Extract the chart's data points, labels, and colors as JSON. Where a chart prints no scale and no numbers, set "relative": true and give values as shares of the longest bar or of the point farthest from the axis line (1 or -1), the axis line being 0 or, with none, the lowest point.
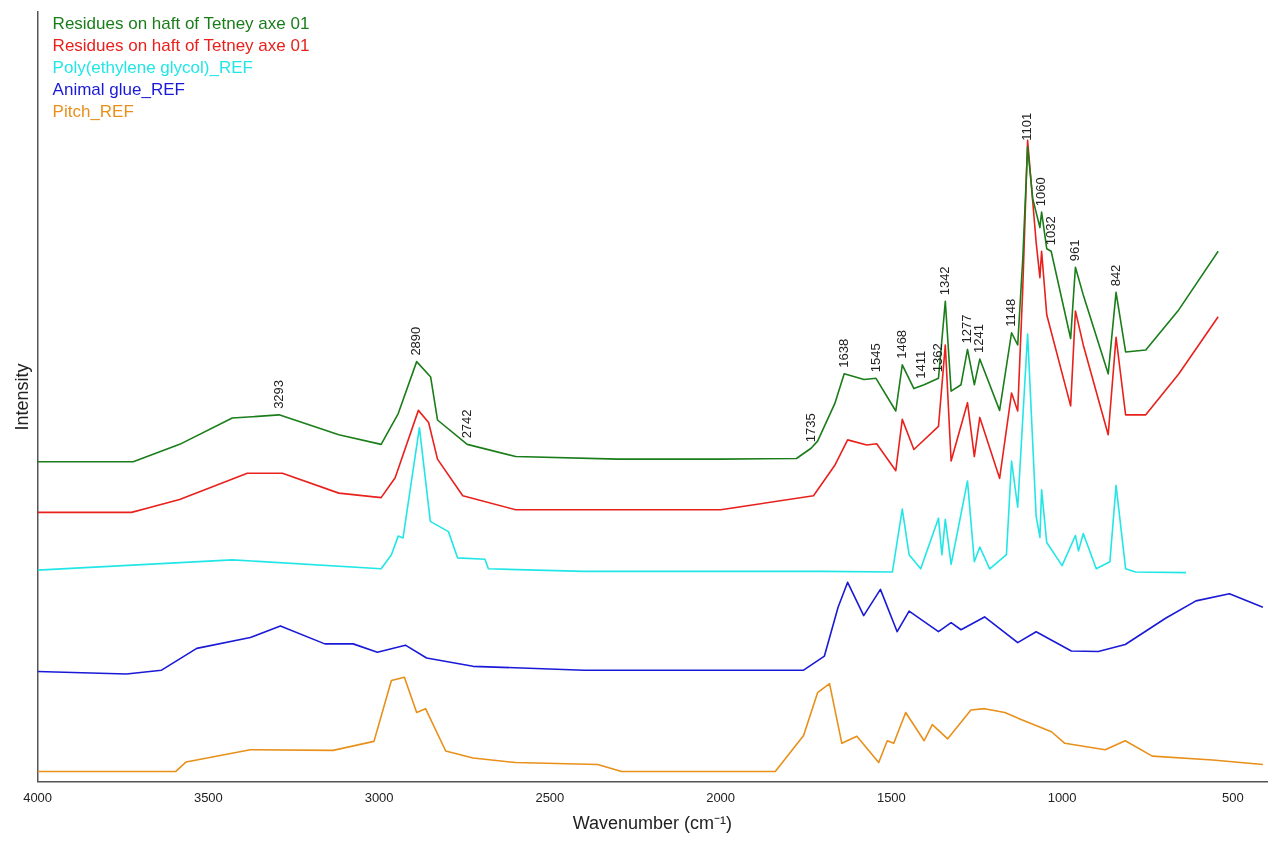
{
  "chart_data": {
    "type": "line",
    "xlabel": "Wavenumber (cm⁻¹)",
    "ylabel": "Intensity",
    "relative": true,
    "xlim": [
      4000,
      400
    ],
    "xticks": [
      4000,
      3500,
      3000,
      2500,
      2000,
      1500,
      1000,
      500
    ],
    "grid": false,
    "legend": "top left",
    "series": [
      {
        "name": "Residues on haft of Tetney axe 01",
        "color": "#1a7d1a",
        "x": [
          4000,
          3720,
          3584,
          3430,
          3293,
          3118,
          2994,
          2944,
          2890,
          2849,
          2829,
          2742,
          2600,
          2300,
          2000,
          1778,
          1735,
          1716,
          1666,
          1638,
          1580,
          1545,
          1487,
          1468,
          1434,
          1404,
          1362,
          1342,
          1325,
          1296,
          1277,
          1257,
          1241,
          1183,
          1148,
          1130,
          1115,
          1101,
          1086,
          1065,
          1060,
          1045,
          1032,
          975,
          961,
          938,
          865,
          842,
          814,
          755,
          658,
          543
        ],
        "values": [
          0.499,
          0.499,
          0.526,
          0.567,
          0.572,
          0.541,
          0.526,
          0.574,
          0.655,
          0.631,
          0.564,
          0.526,
          0.507,
          0.503,
          0.503,
          0.504,
          0.52,
          0.531,
          0.589,
          0.636,
          0.627,
          0.629,
          0.578,
          0.65,
          0.613,
          0.619,
          0.629,
          0.749,
          0.609,
          0.619,
          0.674,
          0.619,
          0.659,
          0.579,
          0.7,
          0.681,
          0.817,
          0.99,
          0.909,
          0.864,
          0.888,
          0.831,
          0.827,
          0.691,
          0.802,
          0.759,
          0.636,
          0.763,
          0.67,
          0.673,
          0.736,
          0.827
        ]
      },
      {
        "name": "Residues on haft of Tetney axe 01",
        "color": "#e8211c",
        "x": [
          4000,
          3725,
          3584,
          3386,
          3283,
          3118,
          2994,
          2953,
          2885,
          2855,
          2829,
          2755,
          2600,
          2300,
          2000,
          1728,
          1666,
          1628,
          1572,
          1543,
          1487,
          1468,
          1434,
          1362,
          1342,
          1325,
          1277,
          1257,
          1241,
          1183,
          1148,
          1130,
          1115,
          1101,
          1076,
          1065,
          1060,
          1045,
          975,
          961,
          938,
          865,
          842,
          814,
          755,
          658,
          543
        ],
        "values": [
          0.42,
          0.42,
          0.44,
          0.481,
          0.481,
          0.45,
          0.443,
          0.474,
          0.579,
          0.56,
          0.503,
          0.446,
          0.424,
          0.424,
          0.424,
          0.446,
          0.493,
          0.533,
          0.525,
          0.527,
          0.485,
          0.565,
          0.518,
          0.554,
          0.681,
          0.5,
          0.591,
          0.507,
          0.568,
          0.473,
          0.606,
          0.578,
          0.772,
          1,
          0.841,
          0.786,
          0.827,
          0.728,
          0.586,
          0.734,
          0.681,
          0.541,
          0.693,
          0.572,
          0.572,
          0.636,
          0.725
        ]
      },
      {
        "name": "Poly(ethylene glycol)_REF",
        "color": "#22e6e6",
        "x": [
          4000,
          3430,
          2994,
          2964,
          2944,
          2930,
          2882,
          2850,
          2797,
          2770,
          2690,
          2680,
          2400,
          2000,
          1700,
          1497,
          1468,
          1448,
          1414,
          1362,
          1352,
          1342,
          1325,
          1277,
          1257,
          1241,
          1212,
          1163,
          1148,
          1130,
          1101,
          1076,
          1065,
          1060,
          1045,
          1000,
          961,
          952,
          938,
          900,
          860,
          842,
          814,
          785,
          637
        ],
        "values": [
          0.33,
          0.346,
          0.332,
          0.354,
          0.383,
          0.38,
          0.552,
          0.406,
          0.39,
          0.349,
          0.347,
          0.332,
          0.328,
          0.328,
          0.328,
          0.327,
          0.425,
          0.354,
          0.332,
          0.411,
          0.354,
          0.409,
          0.339,
          0.469,
          0.343,
          0.366,
          0.332,
          0.354,
          0.5,
          0.428,
          0.698,
          0.414,
          0.381,
          0.455,
          0.373,
          0.337,
          0.384,
          0.36,
          0.387,
          0.332,
          0.343,
          0.462,
          0.332,
          0.327,
          0.326
        ]
      },
      {
        "name": "Animal glue_REF",
        "color": "#1a1ad6",
        "x": [
          4000,
          3740,
          3637,
          3534,
          3377,
          3289,
          3159,
          3076,
          3005,
          2923,
          2861,
          2725,
          2400,
          2000,
          1757,
          1696,
          1656,
          1628,
          1581,
          1532,
          1483,
          1448,
          1362,
          1325,
          1296,
          1227,
          1130,
          1076,
          973,
          894,
          815,
          697,
          608,
          510,
          412
        ],
        "values": [
          0.172,
          0.168,
          0.174,
          0.208,
          0.225,
          0.243,
          0.215,
          0.215,
          0.202,
          0.213,
          0.193,
          0.18,
          0.174,
          0.174,
          0.174,
          0.196,
          0.272,
          0.311,
          0.259,
          0.3,
          0.234,
          0.266,
          0.234,
          0.248,
          0.237,
          0.257,
          0.217,
          0.234,
          0.204,
          0.203,
          0.214,
          0.255,
          0.282,
          0.293,
          0.272
        ]
      },
      {
        "name": "Pitch_REF",
        "color": "#e8901a",
        "x": [
          4000,
          3596,
          3565,
          3377,
          3135,
          3015,
          2964,
          2926,
          2890,
          2864,
          2805,
          2725,
          2600,
          2360,
          2290,
          1840,
          1757,
          1716,
          1681,
          1645,
          1601,
          1537,
          1512,
          1493,
          1458,
          1404,
          1380,
          1335,
          1267,
          1227,
          1168,
          1124,
          1031,
          992,
          874,
          815,
          736,
          559,
          412
        ],
        "values": [
          0.016,
          0.016,
          0.031,
          0.05,
          0.049,
          0.063,
          0.158,
          0.163,
          0.108,
          0.114,
          0.048,
          0.037,
          0.03,
          0.027,
          0.016,
          0.016,
          0.072,
          0.139,
          0.153,
          0.06,
          0.071,
          0.03,
          0.064,
          0.06,
          0.108,
          0.064,
          0.089,
          0.067,
          0.112,
          0.114,
          0.108,
          0.098,
          0.078,
          0.06,
          0.05,
          0.064,
          0.04,
          0.034,
          0.027
        ]
      }
    ],
    "annotations": [
      {
        "text": "3293",
        "x": 3293,
        "y": 0.572
      },
      {
        "text": "2890",
        "x": 2890,
        "y": 0.655
      },
      {
        "text": "2742",
        "x": 2742,
        "y": 0.526
      },
      {
        "text": "1735",
        "x": 1735,
        "y": 0.52
      },
      {
        "text": "1638",
        "x": 1638,
        "y": 0.636
      },
      {
        "text": "1545",
        "x": 1545,
        "y": 0.629
      },
      {
        "text": "1468",
        "x": 1468,
        "y": 0.65
      },
      {
        "text": "1411",
        "x": 1411,
        "y": 0.619
      },
      {
        "text": "1362",
        "x": 1362,
        "y": 0.629
      },
      {
        "text": "1342",
        "x": 1342,
        "y": 0.749
      },
      {
        "text": "1277",
        "x": 1277,
        "y": 0.674
      },
      {
        "text": "1241",
        "x": 1241,
        "y": 0.659
      },
      {
        "text": "1148",
        "x": 1148,
        "y": 0.7
      },
      {
        "text": "1101",
        "x": 1101,
        "y": 0.99
      },
      {
        "text": "1060",
        "x": 1060,
        "y": 0.888
      },
      {
        "text": "1032",
        "x": 1032,
        "y": 0.827
      },
      {
        "text": "961",
        "x": 961,
        "y": 0.802
      },
      {
        "text": "842",
        "x": 842,
        "y": 0.763
      }
    ]
  }
}
